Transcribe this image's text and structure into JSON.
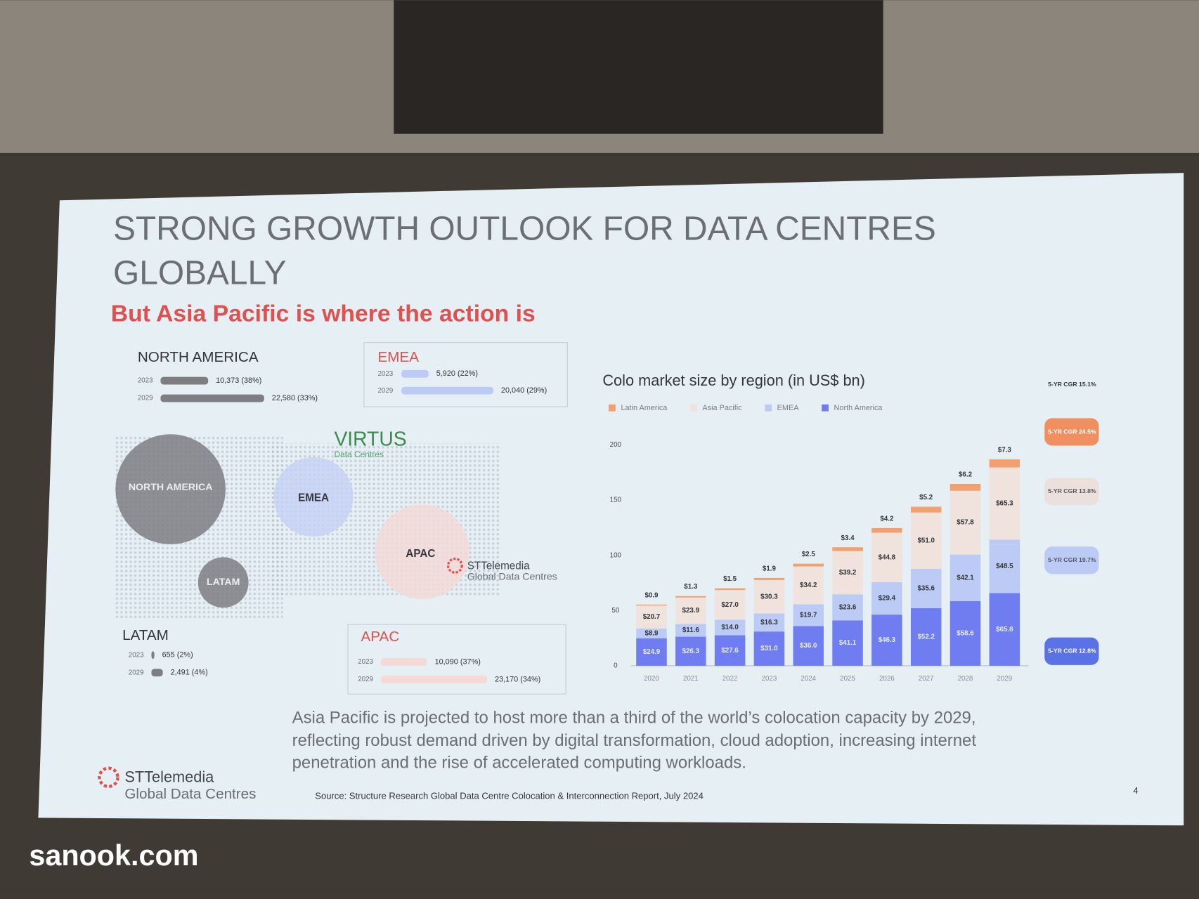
{
  "slide": {
    "title_line1": "STRONG GROWTH OUTLOOK FOR DATA CENTRES",
    "title_line2": "GLOBALLY",
    "subtitle": "But Asia Pacific is where the action is",
    "regions": [
      {
        "name": "NORTH AMERICA",
        "rows": [
          {
            "year": "2023",
            "value": 10373,
            "label": "10,373 (38%)"
          },
          {
            "year": "2029",
            "value": 22580,
            "label": "22,580 (33%)"
          }
        ]
      },
      {
        "name": "EMEA",
        "rows": [
          {
            "year": "2023",
            "value": 5920,
            "label": "5,920 (22%)"
          },
          {
            "year": "2029",
            "value": 20040,
            "label": "20,040 (29%)"
          }
        ]
      },
      {
        "name": "LATAM",
        "rows": [
          {
            "year": "2023",
            "value": 655,
            "label": "655 (2%)"
          },
          {
            "year": "2029",
            "value": 2491,
            "label": "2,491 (4%)"
          }
        ]
      },
      {
        "name": "APAC",
        "rows": [
          {
            "year": "2023",
            "value": 10090,
            "label": "10,090 (37%)"
          },
          {
            "year": "2029",
            "value": 23170,
            "label": "23,170 (34%)"
          }
        ]
      }
    ],
    "map_labels": [
      "NORTH AMERICA",
      "EMEA",
      "APAC",
      "LATAM"
    ],
    "virtus": "VIRTUS",
    "virtus_sub": "Data Centres",
    "map_logo": "STTelemedia",
    "map_logo_sub": "Global Data Centres",
    "body": [
      "Asia Pacific is projected to host more than a third of the world’s colocation capacity by 2029,",
      "reflecting robust demand driven by digital transformation, cloud adoption, increasing internet",
      "penetration and the rise of accelerated computing workloads."
    ],
    "logo": "STTelemedia",
    "logo_sub": "Global Data Centres",
    "source": "Source: Structure Research Global Data Centre Colocation & Interconnection Report, July 2024",
    "page_number": "4",
    "watermark": "sanook.com"
  },
  "chart_data": {
    "type": "stacked_bar",
    "title": "Colo market size by region (in US$ bn)",
    "categories": [
      "2020",
      "2021",
      "2022",
      "2023",
      "2024",
      "2025",
      "2026",
      "2027",
      "2028",
      "2029"
    ],
    "ylim": [
      0,
      200
    ],
    "yticks": [
      0,
      50,
      100,
      150,
      200
    ],
    "cagr_total": "5-YR CGR 15.1%",
    "series": [
      {
        "name": "North America",
        "color": "#6f7df0",
        "cagr": "5-YR CGR 12.8%",
        "values": [
          24.9,
          26.3,
          27.6,
          31.0,
          36.0,
          41.1,
          46.3,
          52.2,
          58.6,
          65.8
        ],
        "value_labels": [
          "$24.9",
          "$26.3",
          "$27.6",
          "$31.0",
          "$36.0",
          "$41.1",
          "$46.3",
          "$52.2",
          "$58.6",
          "$65.8"
        ]
      },
      {
        "name": "EMEA",
        "color": "#bccaf6",
        "cagr": "5-YR CGR 19.7%",
        "values": [
          8.9,
          11.6,
          14.0,
          16.3,
          19.7,
          23.6,
          29.4,
          35.6,
          42.1,
          48.5
        ],
        "value_labels": [
          "$8.9",
          "$11.6",
          "$14.0",
          "$16.3",
          "$19.7",
          "$23.6",
          "$29.4",
          "$35.6",
          "$42.1",
          "$48.5"
        ]
      },
      {
        "name": "Asia Pacific",
        "color": "#f0e2dd",
        "cagr": "5-YR CGR 13.8%",
        "values": [
          20.7,
          23.9,
          27.0,
          30.3,
          34.2,
          39.2,
          44.8,
          51.0,
          57.8,
          65.3
        ],
        "value_labels": [
          "$20.7",
          "$23.9",
          "$27.0",
          "$30.3",
          "$34.2",
          "$39.2",
          "$44.8",
          "$51.0",
          "$57.8",
          "$65.3"
        ]
      },
      {
        "name": "Latin America",
        "color": "#f2a06e",
        "cagr": "5-YR CGR 24.5%",
        "values": [
          0.9,
          1.3,
          1.5,
          1.9,
          2.5,
          3.4,
          4.2,
          5.2,
          6.2,
          7.3
        ],
        "value_labels": [
          "$0.9",
          "$1.3",
          "$1.5",
          "$1.9",
          "$2.5",
          "$3.4",
          "$4.2",
          "$5.2",
          "$6.2",
          "$7.3"
        ]
      }
    ]
  }
}
